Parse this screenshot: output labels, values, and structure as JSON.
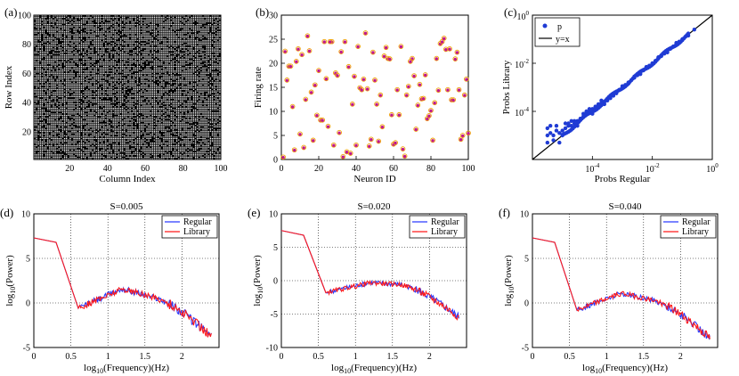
{
  "chart_data": [
    {
      "id": "a",
      "panel_label": "(a)",
      "type": "heatmap",
      "title": "",
      "xlabel": "Column Index",
      "ylabel": "Row Index",
      "xlim": [
        1,
        100
      ],
      "ylim": [
        1,
        100
      ],
      "xticks": [
        20,
        40,
        60,
        80,
        100
      ],
      "yticks": [
        20,
        40,
        60,
        80,
        100
      ],
      "colors": {
        "background": "#000000",
        "cell": "#ffffff"
      },
      "grid_size": [
        100,
        100
      ],
      "connection_density": 0.8,
      "description_values": "binary connectivity matrix, ~80% white cells on black background"
    },
    {
      "id": "b",
      "panel_label": "(b)",
      "type": "scatter",
      "title": "",
      "xlabel": "Neuron ID",
      "ylabel": "Firing rate",
      "xlim": [
        0,
        100
      ],
      "ylim": [
        0,
        30
      ],
      "xticks": [
        0,
        20,
        40,
        60,
        80,
        100
      ],
      "yticks": [
        0,
        5,
        10,
        15,
        20,
        25,
        30
      ],
      "series": [
        {
          "name": "Regular",
          "marker": "circle-open",
          "color": "#f0a000"
        },
        {
          "name": "Library",
          "marker": "dot",
          "color": "#c0188c"
        }
      ],
      "x": [
        1,
        2,
        4,
        5,
        6,
        7,
        9,
        10,
        11,
        12,
        14,
        15,
        17,
        18,
        19,
        21,
        22,
        23,
        25,
        27,
        28,
        29,
        30,
        31,
        32,
        33,
        34,
        35,
        37,
        38,
        40,
        41,
        42,
        43,
        45,
        46,
        47,
        49,
        50,
        51,
        52,
        53,
        54,
        56,
        57,
        58,
        59,
        60,
        62,
        63,
        64,
        66,
        68,
        70,
        71,
        72,
        73,
        74,
        75,
        77,
        78,
        79,
        80,
        82,
        84,
        85,
        86,
        87,
        88,
        90,
        91,
        92,
        93,
        95,
        96,
        97,
        98,
        99,
        100,
        3,
        8,
        13,
        16,
        20,
        24,
        26,
        36,
        39,
        44,
        48,
        55,
        61,
        65,
        67,
        69,
        76,
        81,
        83,
        89,
        94
      ],
      "values": [
        0.5,
        22.5,
        19.4,
        19.4,
        11,
        2,
        23,
        5.3,
        21.8,
        2.5,
        25.7,
        22.6,
        4,
        15.5,
        9.2,
        8.2,
        8.2,
        24.5,
        6.9,
        24.5,
        3,
        18,
        17.5,
        5.6,
        22.4,
        0.6,
        24.5,
        1.6,
        1.3,
        11.5,
        3,
        23.5,
        14.9,
        14.5,
        26.3,
        14.7,
        2.8,
        22.3,
        16.5,
        11.5,
        3.8,
        13.4,
        6.8,
        23.3,
        21,
        20.9,
        9.3,
        3.2,
        14.5,
        9.3,
        23.5,
        0.7,
        15.2,
        21,
        17.4,
        6.3,
        11.3,
        15.6,
        12.6,
        17.6,
        8.5,
        9.1,
        10.2,
        11.8,
        14.4,
        24.1,
        24.5,
        25.2,
        22.9,
        23,
        12.4,
        12.4,
        20.9,
        14.5,
        4.2,
        5,
        13.4,
        16.7,
        5.5,
        16.5,
        20.4,
        12.5,
        14,
        18.5,
        16.8,
        24.5,
        19.3,
        17.3,
        16.7,
        4.2,
        21.5,
        3.5,
        2.2,
        13.4,
        20.4,
        12.7,
        4,
        21,
        14.5,
        22.3
      ]
    },
    {
      "id": "c",
      "panel_label": "(c)",
      "type": "scatter",
      "title": "",
      "xlabel": "Probs Regular",
      "ylabel": "Probs Library",
      "xscale": "log",
      "yscale": "log",
      "xlim": [
        1e-06,
        1
      ],
      "ylim": [
        1e-06,
        1
      ],
      "xticks": [
        {
          "exp": "-4"
        },
        {
          "exp": "-2"
        },
        {
          "exp": "0"
        }
      ],
      "yticks": [
        {
          "exp": "-4"
        },
        {
          "exp": "-2"
        },
        {
          "exp": "0"
        }
      ],
      "tick_base": "10",
      "legend": [
        {
          "label": "p",
          "color": "#1f3bd4",
          "marker": "dot"
        },
        {
          "label": "y=x",
          "color": "#000000",
          "marker": "line"
        }
      ],
      "log10_x": [
        -5.5,
        -5.5,
        -5.4,
        -5.3,
        -5.2,
        -5.1,
        -5,
        -4.9,
        -4.8,
        -4.7,
        -4.6,
        -4.5,
        -4.4,
        -4.3,
        -4.2,
        -4.1,
        -4,
        -3.9,
        -3.8,
        -3.7,
        -3.6,
        -3.5,
        -3.4,
        -3.3,
        -3.2,
        -3.1,
        -3,
        -2.9,
        -2.8,
        -2.7,
        -2.6,
        -2.5,
        -2.4,
        -2.3,
        -2.2,
        -2.1,
        -2,
        -1.9,
        -1.8,
        -1.7,
        -1.6,
        -1.5,
        -1.4,
        -1.3,
        -1.2,
        -1.1,
        -1,
        -0.9,
        -0.6,
        -5.5,
        -5.3,
        -5.1,
        -5,
        -4.8,
        -4.6,
        -4.5,
        -4.3,
        -4.1,
        -4,
        -3.8,
        -3.6,
        -3.4,
        -3.2,
        -3.0,
        -2.8,
        -2.6,
        -2.4,
        -2.2,
        -2.0,
        -1.8,
        -1.5,
        -1.2,
        -0.8,
        -5.2,
        -5.4,
        -4.9,
        -4.7,
        -4.4,
        -4.2,
        -3.9,
        -3.7,
        -3.5,
        -3.3
      ],
      "log10_y": [
        -5.0,
        -5.3,
        -4.9,
        -5.0,
        -4.8,
        -4.9,
        -4.8,
        -4.7,
        -4.6,
        -4.6,
        -4.4,
        -4.4,
        -4.3,
        -4.2,
        -4.1,
        -4.0,
        -3.9,
        -3.85,
        -3.75,
        -3.65,
        -3.6,
        -3.5,
        -3.4,
        -3.3,
        -3.2,
        -3.1,
        -3.0,
        -2.9,
        -2.8,
        -2.7,
        -2.6,
        -2.5,
        -2.4,
        -2.3,
        -2.2,
        -2.1,
        -2.0,
        -1.9,
        -1.8,
        -1.7,
        -1.6,
        -1.5,
        -1.4,
        -1.3,
        -1.2,
        -1.1,
        -1.0,
        -0.9,
        -0.6,
        -4.7,
        -5.2,
        -5.3,
        -5.0,
        -4.5,
        -4.5,
        -4.6,
        -4.1,
        -3.9,
        -4.1,
        -3.7,
        -3.7,
        -3.45,
        -3.25,
        -2.95,
        -2.85,
        -2.55,
        -2.45,
        -2.15,
        -2.05,
        -1.75,
        -1.55,
        -1.15,
        -0.85,
        -4.6,
        -4.6,
        -4.5,
        -4.4,
        -4.35,
        -4.0,
        -3.8,
        -3.55,
        -3.55,
        -3.35
      ]
    },
    {
      "id": "d",
      "panel_label": "(d)",
      "type": "line",
      "title": "S=0.005",
      "xlabel_main": "log",
      "xlabel_sub": "10",
      "xlabel_rest": "(Frequency)(Hz)",
      "ylabel_main": "log",
      "ylabel_sub": "10",
      "ylabel_rest": "(Power)",
      "xlim": [
        0,
        2.5
      ],
      "ylim": [
        -5,
        10
      ],
      "xticks": [
        0,
        0.5,
        1,
        1.5,
        2
      ],
      "yticks": [
        -5,
        0,
        5,
        10
      ],
      "series": [
        {
          "name": "Regular",
          "color": "#2b3bff"
        },
        {
          "name": "Library",
          "color": "#ff1a1a"
        }
      ],
      "shape": {
        "start": 7.3,
        "knee": 6.8,
        "dip": -0.6,
        "peak": 1.6,
        "end": -3.8,
        "wiggle": 0.7
      }
    },
    {
      "id": "e",
      "panel_label": "(e)",
      "type": "line",
      "title": "S=0.020",
      "xlabel_main": "log",
      "xlabel_sub": "10",
      "xlabel_rest": "(Frequency)(Hz)",
      "ylabel_main": "log",
      "ylabel_sub": "10",
      "ylabel_rest": "(Power)",
      "xlim": [
        0,
        2.5
      ],
      "ylim": [
        -10,
        10
      ],
      "xticks": [
        0,
        0.5,
        1,
        1.5,
        2
      ],
      "yticks": [
        -10,
        -5,
        0,
        5,
        10
      ],
      "series": [
        {
          "name": "Regular",
          "color": "#2b3bff"
        },
        {
          "name": "Library",
          "color": "#ff1a1a"
        }
      ],
      "shape": {
        "start": 7.5,
        "knee": 6.8,
        "dip": -1.8,
        "peak": -0.3,
        "end": -5.5,
        "wiggle": 0.7
      }
    },
    {
      "id": "f",
      "panel_label": "(f)",
      "type": "line",
      "title": "S=0.040",
      "xlabel_main": "log",
      "xlabel_sub": "10",
      "xlabel_rest": "(Frequency)(Hz)",
      "ylabel_main": "log",
      "ylabel_sub": "10",
      "ylabel_rest": "(Power)",
      "xlim": [
        0,
        2.5
      ],
      "ylim": [
        -5,
        10
      ],
      "xticks": [
        0,
        0.5,
        1,
        1.5,
        2
      ],
      "yticks": [
        -5,
        0,
        5,
        10
      ],
      "series": [
        {
          "name": "Regular",
          "color": "#2b3bff"
        },
        {
          "name": "Library",
          "color": "#ff1a1a"
        }
      ],
      "shape": {
        "start": 7.3,
        "knee": 6.8,
        "dip": -0.8,
        "peak": 1.1,
        "end": -4.0,
        "wiggle": 0.6
      }
    }
  ]
}
